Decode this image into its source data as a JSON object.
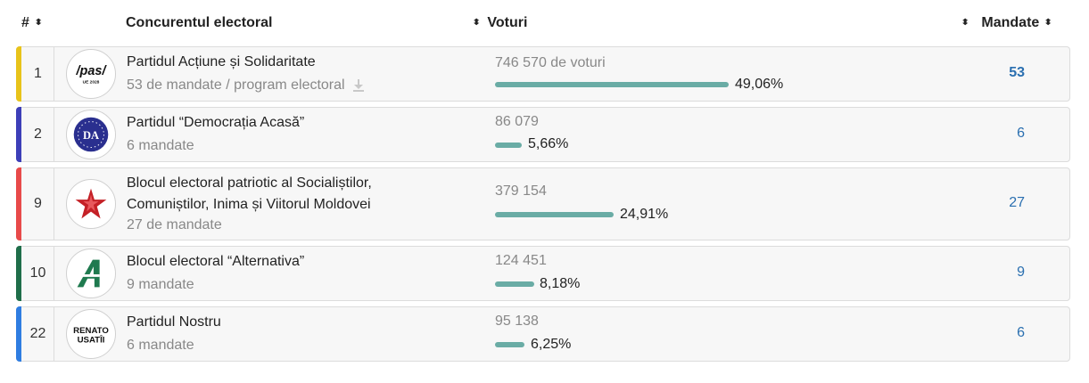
{
  "header": {
    "num_label": "#",
    "competitor_label": "Concurentul electoral",
    "votes_label": "Voturi",
    "mandates_label": "Mandate",
    "sort_glyph": "⬍"
  },
  "rows": [
    {
      "num": "1",
      "name": "Partidul Acțiune și Solidaritate",
      "sub": "53 de mandate / program electoral",
      "votes": "746 570 de voturi",
      "percent_text": "49,06%",
      "percent_value": 49.06,
      "mandates": "53",
      "logo": {
        "type": "pas",
        "text_main": "/pas/",
        "text_small": "UE 2028"
      },
      "accent": "#e8c31a",
      "has_download": true,
      "mandates_bold": true
    },
    {
      "num": "2",
      "name": "Partidul “Democrația Acasă”",
      "sub": "6 mandate",
      "votes": "86 079",
      "percent_text": "5,66%",
      "percent_value": 5.66,
      "mandates": "6",
      "logo": {
        "type": "da",
        "text_main": "DA"
      },
      "accent": "#3d3fb8",
      "has_download": false,
      "mandates_bold": false
    },
    {
      "num": "9",
      "name_lines": [
        "Blocul electoral patriotic al Socialiștilor,",
        "Comuniștilor, Inima și Viitorul Moldovei"
      ],
      "sub": "27 de mandate",
      "votes": "379 154",
      "percent_text": "24,91%",
      "percent_value": 24.91,
      "mandates": "27",
      "logo": {
        "type": "star"
      },
      "accent": "#e84a4a",
      "has_download": false,
      "mandates_bold": false
    },
    {
      "num": "10",
      "name": "Blocul electoral “Alternativa”",
      "sub": "9 mandate",
      "votes": "124 451",
      "percent_text": "8,18%",
      "percent_value": 8.18,
      "mandates": "9",
      "logo": {
        "type": "alt",
        "text_main": "A"
      },
      "accent": "#1f6e4a",
      "has_download": false,
      "mandates_bold": false
    },
    {
      "num": "22",
      "name": "Partidul Nostru",
      "sub": "6 mandate",
      "votes": "95 138",
      "percent_text": "6,25%",
      "percent_value": 6.25,
      "mandates": "6",
      "logo": {
        "type": "renato",
        "text_line1": "RENATO",
        "text_line2": "USATÎI"
      },
      "accent": "#2f7de1",
      "has_download": false,
      "mandates_bold": false
    }
  ]
}
